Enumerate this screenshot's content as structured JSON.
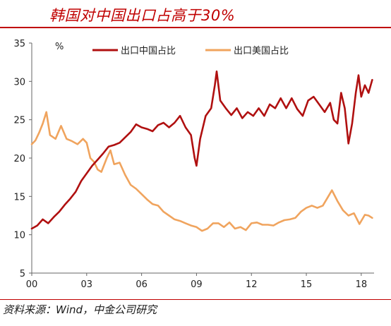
{
  "title": "韩国对中国出口占高于30%",
  "source": "资料来源：Wind，中金公司研究",
  "chart_data": {
    "type": "line",
    "unit": "%",
    "xlim": [
      2000,
      2018.7
    ],
    "ylim": [
      5,
      35
    ],
    "x_ticks": [
      {
        "label": "00",
        "x": 2000
      },
      {
        "label": "03",
        "x": 2003
      },
      {
        "label": "06",
        "x": 2006
      },
      {
        "label": "09",
        "x": 2009
      },
      {
        "label": "12",
        "x": 2012
      },
      {
        "label": "15",
        "x": 2015
      },
      {
        "label": "18",
        "x": 2018
      }
    ],
    "y_ticks": [
      5,
      10,
      15,
      20,
      25,
      30,
      35
    ],
    "legend_position": "top",
    "series": [
      {
        "name": "出口中国占比",
        "color": "#b01010",
        "points": [
          [
            2000.0,
            10.8
          ],
          [
            2000.3,
            11.2
          ],
          [
            2000.6,
            12.0
          ],
          [
            2000.9,
            11.5
          ],
          [
            2001.2,
            12.3
          ],
          [
            2001.5,
            13.0
          ],
          [
            2001.8,
            13.9
          ],
          [
            2002.1,
            14.7
          ],
          [
            2002.4,
            15.6
          ],
          [
            2002.7,
            17.0
          ],
          [
            2003.0,
            18.0
          ],
          [
            2003.3,
            19.0
          ],
          [
            2003.6,
            19.8
          ],
          [
            2003.9,
            20.6
          ],
          [
            2004.2,
            21.5
          ],
          [
            2004.5,
            21.7
          ],
          [
            2004.8,
            22.0
          ],
          [
            2005.1,
            22.7
          ],
          [
            2005.4,
            23.4
          ],
          [
            2005.7,
            24.4
          ],
          [
            2006.0,
            24.0
          ],
          [
            2006.3,
            23.8
          ],
          [
            2006.6,
            23.5
          ],
          [
            2006.9,
            24.3
          ],
          [
            2007.2,
            24.6
          ],
          [
            2007.5,
            24.0
          ],
          [
            2007.8,
            24.6
          ],
          [
            2008.1,
            25.5
          ],
          [
            2008.4,
            24.0
          ],
          [
            2008.7,
            23.0
          ],
          [
            2008.9,
            20.0
          ],
          [
            2009.0,
            19.0
          ],
          [
            2009.2,
            22.5
          ],
          [
            2009.5,
            25.5
          ],
          [
            2009.8,
            26.5
          ],
          [
            2010.0,
            29.5
          ],
          [
            2010.1,
            31.3
          ],
          [
            2010.3,
            27.5
          ],
          [
            2010.6,
            26.5
          ],
          [
            2010.9,
            25.6
          ],
          [
            2011.2,
            26.5
          ],
          [
            2011.5,
            25.2
          ],
          [
            2011.8,
            26.0
          ],
          [
            2012.1,
            25.5
          ],
          [
            2012.4,
            26.5
          ],
          [
            2012.7,
            25.5
          ],
          [
            2013.0,
            27.0
          ],
          [
            2013.3,
            26.5
          ],
          [
            2013.6,
            27.8
          ],
          [
            2013.9,
            26.5
          ],
          [
            2014.2,
            27.8
          ],
          [
            2014.5,
            26.4
          ],
          [
            2014.8,
            25.5
          ],
          [
            2015.1,
            27.5
          ],
          [
            2015.4,
            28.0
          ],
          [
            2015.7,
            27.0
          ],
          [
            2016.0,
            26.0
          ],
          [
            2016.3,
            27.2
          ],
          [
            2016.5,
            25.0
          ],
          [
            2016.7,
            24.5
          ],
          [
            2016.9,
            28.5
          ],
          [
            2017.1,
            26.5
          ],
          [
            2017.3,
            21.9
          ],
          [
            2017.5,
            24.5
          ],
          [
            2017.7,
            28.5
          ],
          [
            2017.85,
            30.8
          ],
          [
            2018.0,
            28.0
          ],
          [
            2018.2,
            29.5
          ],
          [
            2018.4,
            28.5
          ],
          [
            2018.6,
            30.2
          ]
        ]
      },
      {
        "name": "出口美国占比",
        "color": "#f0a45e",
        "points": [
          [
            2000.0,
            21.8
          ],
          [
            2000.2,
            22.3
          ],
          [
            2000.4,
            23.3
          ],
          [
            2000.6,
            24.5
          ],
          [
            2000.8,
            26.0
          ],
          [
            2001.0,
            23.0
          ],
          [
            2001.3,
            22.5
          ],
          [
            2001.6,
            24.2
          ],
          [
            2001.9,
            22.5
          ],
          [
            2002.2,
            22.2
          ],
          [
            2002.5,
            21.8
          ],
          [
            2002.8,
            22.5
          ],
          [
            2003.0,
            22.0
          ],
          [
            2003.2,
            20.0
          ],
          [
            2003.4,
            19.5
          ],
          [
            2003.6,
            18.5
          ],
          [
            2003.8,
            18.2
          ],
          [
            2004.1,
            20.0
          ],
          [
            2004.3,
            21.0
          ],
          [
            2004.5,
            19.2
          ],
          [
            2004.8,
            19.4
          ],
          [
            2005.1,
            17.8
          ],
          [
            2005.4,
            16.5
          ],
          [
            2005.7,
            16.0
          ],
          [
            2006.0,
            15.3
          ],
          [
            2006.3,
            14.6
          ],
          [
            2006.6,
            14.0
          ],
          [
            2006.9,
            13.8
          ],
          [
            2007.2,
            13.0
          ],
          [
            2007.5,
            12.5
          ],
          [
            2007.8,
            12.0
          ],
          [
            2008.1,
            11.8
          ],
          [
            2008.4,
            11.5
          ],
          [
            2008.7,
            11.2
          ],
          [
            2009.0,
            11.0
          ],
          [
            2009.3,
            10.5
          ],
          [
            2009.6,
            10.8
          ],
          [
            2009.9,
            11.5
          ],
          [
            2010.2,
            11.5
          ],
          [
            2010.5,
            11.0
          ],
          [
            2010.8,
            11.6
          ],
          [
            2011.1,
            10.8
          ],
          [
            2011.4,
            11.0
          ],
          [
            2011.7,
            10.6
          ],
          [
            2012.0,
            11.5
          ],
          [
            2012.3,
            11.6
          ],
          [
            2012.6,
            11.3
          ],
          [
            2012.9,
            11.3
          ],
          [
            2013.2,
            11.2
          ],
          [
            2013.5,
            11.6
          ],
          [
            2013.8,
            11.9
          ],
          [
            2014.1,
            12.0
          ],
          [
            2014.4,
            12.2
          ],
          [
            2014.7,
            13.0
          ],
          [
            2015.0,
            13.5
          ],
          [
            2015.3,
            13.8
          ],
          [
            2015.6,
            13.5
          ],
          [
            2015.9,
            13.8
          ],
          [
            2016.2,
            15.0
          ],
          [
            2016.4,
            15.8
          ],
          [
            2016.7,
            14.4
          ],
          [
            2017.0,
            13.2
          ],
          [
            2017.3,
            12.5
          ],
          [
            2017.6,
            12.8
          ],
          [
            2017.9,
            11.4
          ],
          [
            2018.2,
            12.6
          ],
          [
            2018.4,
            12.5
          ],
          [
            2018.6,
            12.2
          ]
        ]
      }
    ]
  }
}
